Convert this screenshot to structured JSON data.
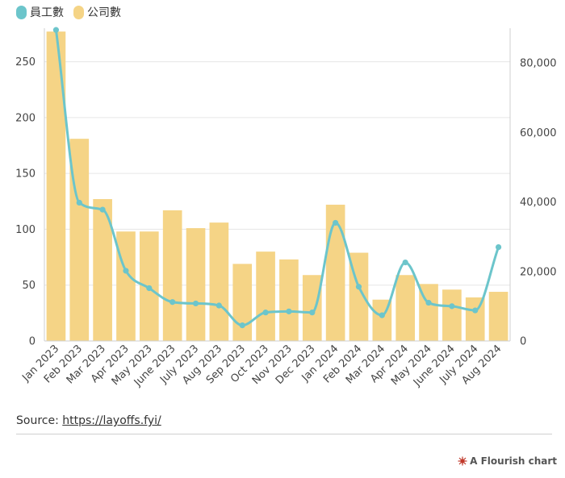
{
  "chart_data": {
    "type": "bar",
    "categories": [
      "Jan 2023",
      "Feb 2023",
      "Mar 2023",
      "Apr 2023",
      "May 2023",
      "June 2023",
      "July 2023",
      "Aug 2023",
      "Sep 2023",
      "Oct 2023",
      "Nov 2023",
      "Dec 2023",
      "Jan 2024",
      "Feb 2024",
      "Mar 2024",
      "Apr 2024",
      "May 2024",
      "June 2024",
      "July 2024",
      "Aug 2024"
    ],
    "series": [
      {
        "name": "公司數",
        "type": "bar",
        "axis": "left",
        "color": "#f5d486",
        "values": [
          277,
          181,
          127,
          98,
          98,
          117,
          101,
          106,
          69,
          80,
          73,
          59,
          122,
          79,
          37,
          59,
          51,
          46,
          39,
          44
        ]
      },
      {
        "name": "員工數",
        "type": "line",
        "axis": "right",
        "color": "#6cc5cb",
        "values": [
          89500,
          39800,
          37800,
          20200,
          15200,
          11200,
          10800,
          10200,
          4500,
          8200,
          8500,
          8200,
          34000,
          15600,
          7400,
          22600,
          11000,
          10000,
          8800,
          27000
        ]
      }
    ],
    "ylim_left": [
      0,
      280
    ],
    "ylim_right": [
      0,
      90000
    ],
    "yticks_left": [
      "0",
      "50",
      "100",
      "150",
      "200",
      "250"
    ],
    "yticks_right": [
      "0",
      "20,000",
      "40,000",
      "60,000",
      "80,000"
    ],
    "legend_position": "top-left",
    "grid": true
  },
  "legend": {
    "items": [
      {
        "label": "員工數",
        "color": "#6cc5cb"
      },
      {
        "label": "公司數",
        "color": "#f5d486"
      }
    ]
  },
  "footer": {
    "source_label": "Source: ",
    "source_link": "https://layoffs.fyi/",
    "credit": "A Flourish chart"
  }
}
